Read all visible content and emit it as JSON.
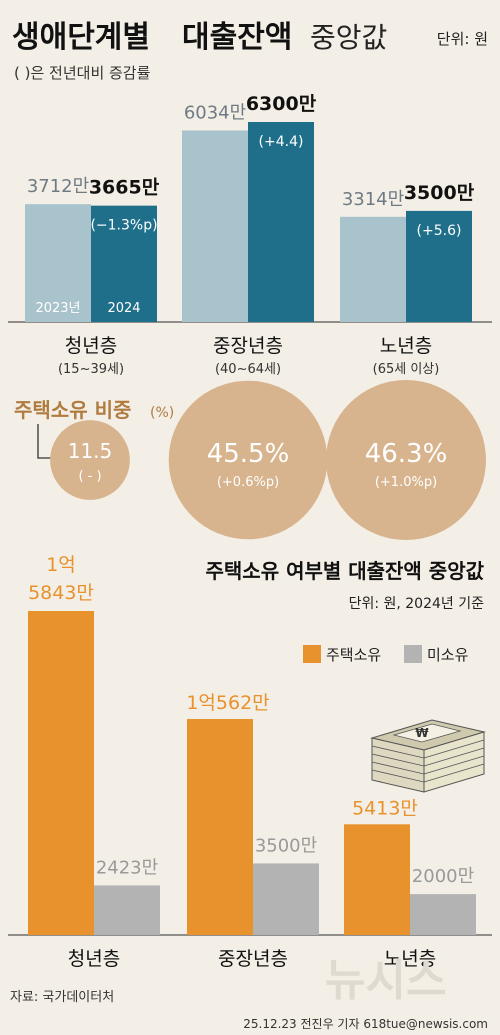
{
  "header": {
    "title_a": "생애단계별",
    "title_b": "대출잔액",
    "title_c": "중앙값",
    "unit": "단위: 원",
    "note": "( )은 전년대비 증감률"
  },
  "colors": {
    "bg": "#f4efe6",
    "light_blue": "#a9c3cc",
    "dark_teal": "#1f6f8b",
    "circle": "#d7b48d",
    "orange": "#e8922e",
    "gray": "#b3b3b3",
    "text_dark": "#222222",
    "text_gray": "#6e7b85",
    "brown": "#b07b3f"
  },
  "chart_data": [
    {
      "type": "bar",
      "title": "생애단계별 대출잔액 중앙값",
      "unit_label": "단위: 원",
      "categories": [
        "청년층",
        "중장년층",
        "노년층"
      ],
      "category_sub": [
        "(15~39세)",
        "(40~64세)",
        "(65세 이상)"
      ],
      "series": [
        {
          "name": "2023년",
          "values": [
            37120000,
            60340000,
            33140000
          ],
          "labels": [
            "3712만",
            "6034만",
            "3314만"
          ]
        },
        {
          "name": "2024",
          "values": [
            36650000,
            63000000,
            35000000
          ],
          "labels": [
            "3665만",
            "6300만",
            "3500만"
          ],
          "changes": [
            "(−1.3%p)",
            "(+4.4)",
            "(+5.6)"
          ]
        }
      ]
    },
    {
      "type": "bubble",
      "title": "주택소유 비중",
      "unit": "(%)",
      "categories": [
        "청년층",
        "중장년층",
        "노년층"
      ],
      "values": [
        11.5,
        45.5,
        46.3
      ],
      "labels": [
        "11.5",
        "45.5%",
        "46.3%"
      ],
      "changes": [
        "( - )",
        "(+0.6%p)",
        "(+1.0%p)"
      ]
    },
    {
      "type": "bar",
      "title": "주택소유 여부별 대출잔액 중앙값",
      "subtitle": "단위: 원, 2024년 기준",
      "categories": [
        "청년층",
        "중장년층",
        "노년층"
      ],
      "series": [
        {
          "name": "주택소유",
          "values": [
            158430000,
            105620000,
            54130000
          ],
          "labels_line1": [
            "1억",
            "1억562만",
            "5413만"
          ],
          "labels_line2": [
            "5843만",
            "",
            ""
          ]
        },
        {
          "name": "미소유",
          "values": [
            24230000,
            35000000,
            20000000
          ],
          "labels": [
            "2423만",
            "3500만",
            "2000만"
          ]
        }
      ]
    }
  ],
  "footer": {
    "source": "자료: 국가데이터처",
    "credit": "25.12.23 전진우 기자 618tue@newsis.com",
    "logo": "뉴시스"
  }
}
